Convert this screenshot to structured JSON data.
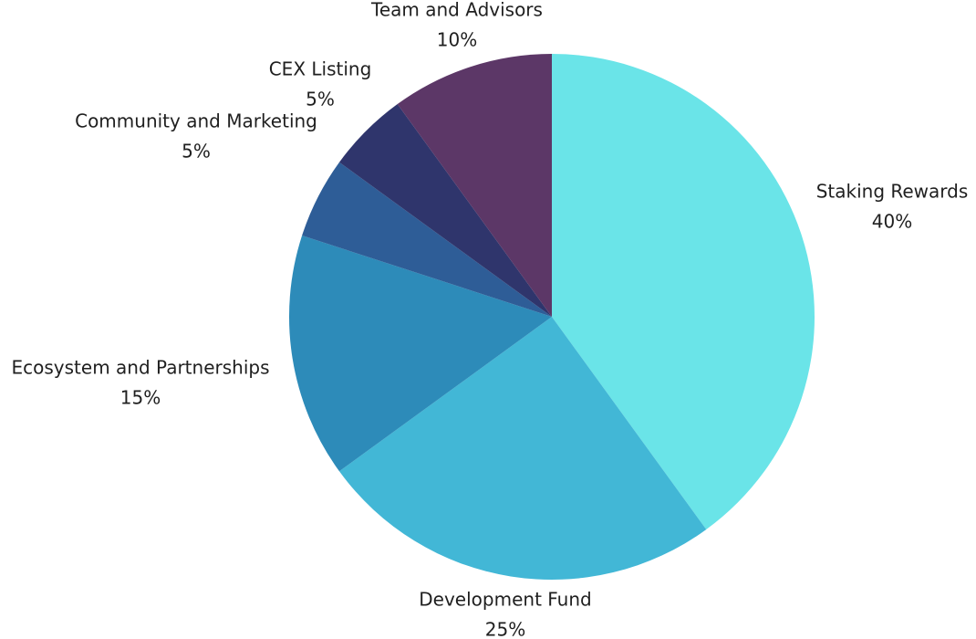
{
  "chart_data": {
    "type": "pie",
    "title": "",
    "start_angle_deg": 0,
    "direction": "clockwise",
    "slices": [
      {
        "label": "Staking Rewards",
        "value": 40,
        "value_label": "40%",
        "color": "#6ae4e8"
      },
      {
        "label": "Development Fund",
        "value": 25,
        "value_label": "25%",
        "color": "#42b7d6"
      },
      {
        "label": "Ecosystem and Partnerships",
        "value": 15,
        "value_label": "15%",
        "color": "#2d8bb9"
      },
      {
        "label": "Community and Marketing",
        "value": 5,
        "value_label": "5%",
        "color": "#2e5d97"
      },
      {
        "label": "CEX Listing",
        "value": 5,
        "value_label": "5%",
        "color": "#2f356c"
      },
      {
        "label": "Team and Advisors",
        "value": 10,
        "value_label": "10%",
        "color": "#5c3767"
      }
    ]
  }
}
